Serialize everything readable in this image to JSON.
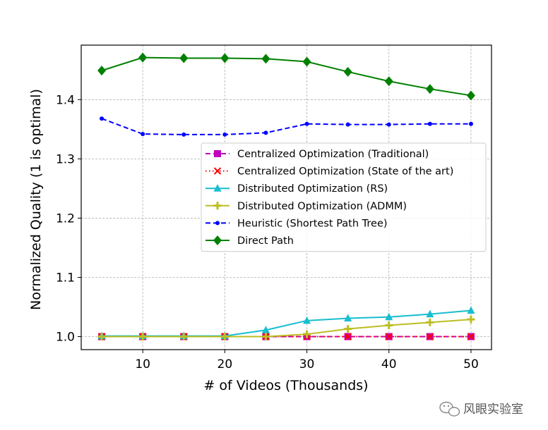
{
  "chart_data": {
    "type": "line",
    "title": "",
    "xlabel": "# of Videos (Thousands)",
    "ylabel": "Normalized Quality (1 is optimal)",
    "x": [
      5,
      10,
      15,
      20,
      25,
      30,
      35,
      40,
      45,
      50
    ],
    "xlim": [
      2.5,
      52.5
    ],
    "ylim": [
      0.978,
      1.492
    ],
    "xticks": [
      "10",
      "20",
      "30",
      "40",
      "50"
    ],
    "yticks": [
      "1.0",
      "1.1",
      "1.2",
      "1.3",
      "1.4"
    ],
    "grid": true,
    "legend_position": "center-right",
    "series": [
      {
        "name": "Centralized Optimization (Traditional)",
        "color": "#bf00bf",
        "dash": "dashed",
        "marker": "square",
        "values": [
          1.0,
          1.0,
          1.0,
          1.0,
          1.0,
          1.0,
          1.0,
          1.0,
          1.0,
          1.0
        ]
      },
      {
        "name": "Centralized Optimization (State of the art)",
        "color": "#ff0000",
        "dash": "dotted",
        "marker": "x",
        "values": [
          1.0,
          1.0,
          1.0,
          1.0,
          1.0,
          1.0,
          1.0,
          1.0,
          1.0,
          1.0
        ]
      },
      {
        "name": "Distributed Optimization (RS)",
        "color": "#17becf",
        "dash": "solid",
        "marker": "triangle",
        "values": [
          1.001,
          1.001,
          1.001,
          1.001,
          1.011,
          1.027,
          1.031,
          1.033,
          1.038,
          1.044
        ]
      },
      {
        "name": "Distributed Optimization (ADMM)",
        "color": "#bcbd22",
        "dash": "solid",
        "marker": "plus",
        "values": [
          1.0,
          1.0,
          1.0,
          1.0,
          1.0,
          1.004,
          1.013,
          1.019,
          1.024,
          1.029
        ]
      },
      {
        "name": "Heuristic (Shortest Path Tree)",
        "color": "#0000ff",
        "dash": "dashed",
        "marker": "dot",
        "values": [
          1.368,
          1.342,
          1.341,
          1.341,
          1.344,
          1.359,
          1.358,
          1.358,
          1.359,
          1.359
        ]
      },
      {
        "name": "Direct Path",
        "color": "#008000",
        "dash": "solid",
        "marker": "diamond",
        "values": [
          1.449,
          1.471,
          1.47,
          1.47,
          1.469,
          1.464,
          1.447,
          1.431,
          1.418,
          1.407
        ]
      }
    ]
  },
  "watermark": {
    "text": "风眼实验室",
    "icon": "wechat-icon"
  }
}
